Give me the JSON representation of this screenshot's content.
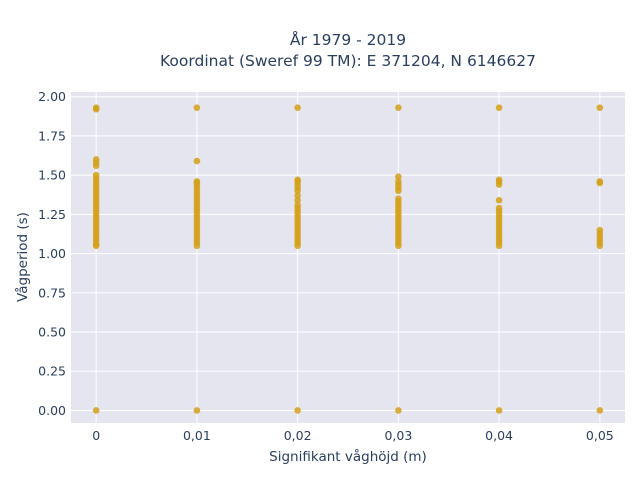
{
  "chart_data": {
    "type": "scatter",
    "title_line1": "År 1979 - 2019",
    "title_line2": "Koordinat (Sweref 99 TM): E 371204, N 6146627",
    "xlabel": "Signifikant våghöjd (m)",
    "ylabel": "Vågperiod (s)",
    "xlim": [
      -0.0025,
      0.0525
    ],
    "ylim": [
      -0.08,
      2.03
    ],
    "x_tick_values": [
      0,
      0.01,
      0.02,
      0.03,
      0.04,
      0.05
    ],
    "x_tick_labels": [
      "0",
      "0,01",
      "0,02",
      "0,03",
      "0,04",
      "0,05"
    ],
    "y_tick_values": [
      0,
      0.25,
      0.5,
      0.75,
      1.0,
      1.25,
      1.5,
      1.75,
      2.0
    ],
    "y_tick_labels": [
      "0.00",
      "0.25",
      "0.50",
      "0.75",
      "1.00",
      "1.25",
      "1.50",
      "1.75",
      "2.00"
    ],
    "grid": true,
    "legend": "none",
    "colors": {
      "marker": "#d4a017",
      "plot_bg": "#e5e5f0",
      "grid": "#ffffff",
      "text": "#2a3f5f"
    },
    "series": [
      {
        "x": 0,
        "y": [
          0.0,
          1.05,
          1.06,
          1.08,
          1.1,
          1.12,
          1.14,
          1.16,
          1.18,
          1.2,
          1.22,
          1.24,
          1.26,
          1.28,
          1.3,
          1.32,
          1.34,
          1.36,
          1.38,
          1.4,
          1.42,
          1.44,
          1.46,
          1.48,
          1.5,
          1.56,
          1.58,
          1.6,
          1.92,
          1.93
        ]
      },
      {
        "x": 0.01,
        "y": [
          0.0,
          1.05,
          1.07,
          1.09,
          1.11,
          1.13,
          1.15,
          1.17,
          1.19,
          1.21,
          1.23,
          1.25,
          1.27,
          1.29,
          1.31,
          1.33,
          1.35,
          1.37,
          1.39,
          1.41,
          1.43,
          1.45,
          1.46,
          1.59,
          1.93
        ]
      },
      {
        "x": 0.02,
        "y": [
          0.0,
          1.05,
          1.07,
          1.09,
          1.11,
          1.13,
          1.15,
          1.17,
          1.19,
          1.21,
          1.23,
          1.25,
          1.27,
          1.29,
          1.31,
          1.34,
          1.37,
          1.4,
          1.42,
          1.44,
          1.46,
          1.47,
          1.93
        ]
      },
      {
        "x": 0.03,
        "y": [
          0.0,
          1.05,
          1.07,
          1.09,
          1.11,
          1.13,
          1.15,
          1.17,
          1.19,
          1.21,
          1.23,
          1.25,
          1.27,
          1.29,
          1.31,
          1.33,
          1.35,
          1.4,
          1.42,
          1.44,
          1.46,
          1.49,
          1.93
        ]
      },
      {
        "x": 0.04,
        "y": [
          0.0,
          1.05,
          1.07,
          1.09,
          1.11,
          1.13,
          1.15,
          1.17,
          1.19,
          1.21,
          1.23,
          1.25,
          1.27,
          1.29,
          1.34,
          1.44,
          1.46,
          1.47,
          1.93
        ]
      },
      {
        "x": 0.05,
        "y": [
          0.0,
          1.05,
          1.07,
          1.09,
          1.11,
          1.13,
          1.15,
          1.45,
          1.46,
          1.93
        ]
      }
    ]
  }
}
